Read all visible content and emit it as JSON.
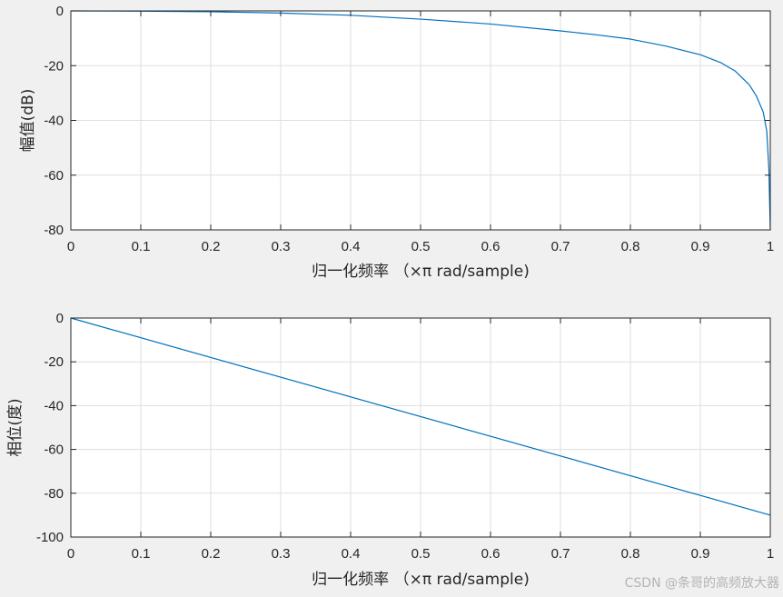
{
  "chart_data": [
    {
      "type": "line",
      "xlabel": "归一化频率 （×π rad/sample)",
      "ylabel": "幅值(dB)",
      "xlim": [
        0,
        1
      ],
      "ylim": [
        -80,
        0
      ],
      "x_ticks": [
        0,
        0.1,
        0.2,
        0.3,
        0.4,
        0.5,
        0.6,
        0.7,
        0.8,
        0.9,
        1
      ],
      "y_ticks": [
        0,
        -20,
        -40,
        -60,
        -80
      ],
      "grid": true,
      "series": [
        {
          "color": "#0072bd",
          "x": [
            0,
            0.1,
            0.2,
            0.3,
            0.4,
            0.5,
            0.6,
            0.7,
            0.75,
            0.8,
            0.85,
            0.9,
            0.93,
            0.95,
            0.97,
            0.98,
            0.99,
            0.995,
            0.998,
            1.0
          ],
          "y": [
            0,
            -0.1,
            -0.3,
            -0.8,
            -1.6,
            -3.0,
            -4.8,
            -7.3,
            -8.7,
            -10.3,
            -12.8,
            -16.0,
            -19.0,
            -22.0,
            -27.0,
            -31.0,
            -37.0,
            -44.0,
            -58.0,
            -80.0
          ]
        }
      ]
    },
    {
      "type": "line",
      "xlabel": "归一化频率 （×π rad/sample)",
      "ylabel": "相位(度)",
      "xlim": [
        0,
        1
      ],
      "ylim": [
        -100,
        0
      ],
      "x_ticks": [
        0,
        0.1,
        0.2,
        0.3,
        0.4,
        0.5,
        0.6,
        0.7,
        0.8,
        0.9,
        1
      ],
      "y_ticks": [
        0,
        -20,
        -40,
        -60,
        -80,
        -100
      ],
      "grid": true,
      "series": [
        {
          "color": "#0072bd",
          "x": [
            0,
            1
          ],
          "y": [
            0,
            -90
          ]
        }
      ]
    }
  ],
  "watermark": "CSDN @条哥的高频放大器"
}
